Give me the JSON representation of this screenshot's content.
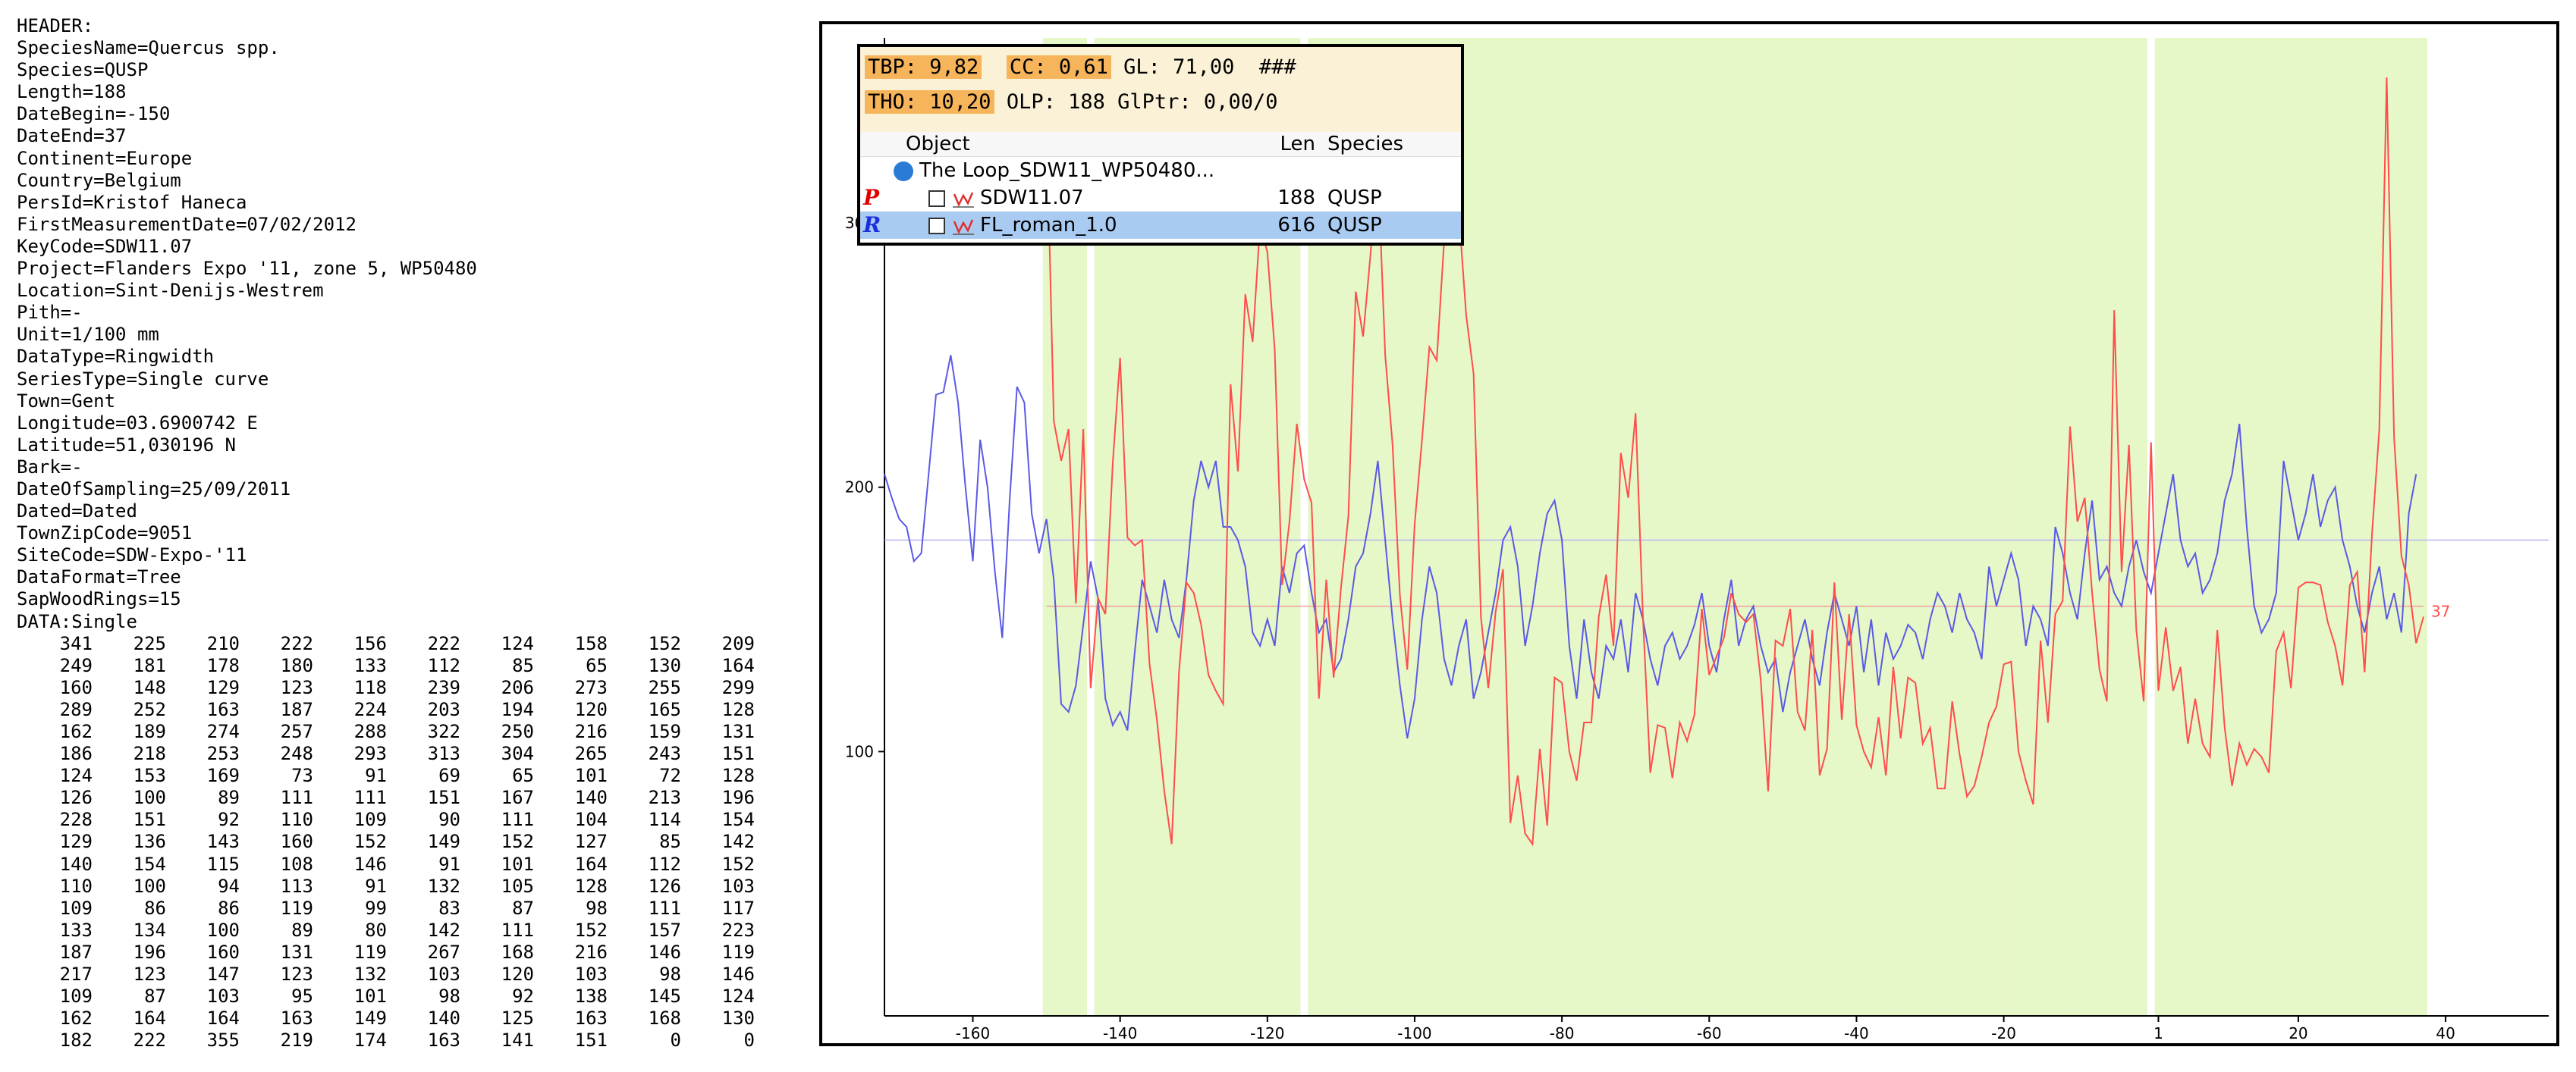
{
  "header_lines": [
    "HEADER:",
    "SpeciesName=Quercus spp.",
    "Species=QUSP",
    "Length=188",
    "DateBegin=-150",
    "DateEnd=37",
    "Continent=Europe",
    "Country=Belgium",
    "PersId=Kristof Haneca",
    "FirstMeasurementDate=07/02/2012",
    "KeyCode=SDW11.07",
    "Project=Flanders Expo '11, zone 5, WP50480",
    "Location=Sint-Denijs-Westrem",
    "Pith=-",
    "Unit=1/100 mm",
    "DataType=Ringwidth",
    "SeriesType=Single curve",
    "Town=Gent",
    "Longitude=03.6900742 E",
    "Latitude=51,030196 N",
    "Bark=-",
    "DateOfSampling=25/09/2011",
    "Dated=Dated",
    "TownZipCode=9051",
    "SiteCode=SDW-Expo-'11",
    "DataFormat=Tree",
    "SapWoodRings=15",
    "DATA:Single"
  ],
  "data_rows": [
    [
      "341",
      "225",
      "210",
      "222",
      "156",
      "222",
      "124",
      "158",
      "152",
      "209"
    ],
    [
      "249",
      "181",
      "178",
      "180",
      "133",
      "112",
      "85",
      "65",
      "130",
      "164"
    ],
    [
      "160",
      "148",
      "129",
      "123",
      "118",
      "239",
      "206",
      "273",
      "255",
      "299"
    ],
    [
      "289",
      "252",
      "163",
      "187",
      "224",
      "203",
      "194",
      "120",
      "165",
      "128"
    ],
    [
      "162",
      "189",
      "274",
      "257",
      "288",
      "322",
      "250",
      "216",
      "159",
      "131"
    ],
    [
      "186",
      "218",
      "253",
      "248",
      "293",
      "313",
      "304",
      "265",
      "243",
      "151"
    ],
    [
      "124",
      "153",
      "169",
      "73",
      "91",
      "69",
      "65",
      "101",
      "72",
      "128"
    ],
    [
      "126",
      "100",
      "89",
      "111",
      "111",
      "151",
      "167",
      "140",
      "213",
      "196"
    ],
    [
      "228",
      "151",
      "92",
      "110",
      "109",
      "90",
      "111",
      "104",
      "114",
      "154"
    ],
    [
      "129",
      "136",
      "143",
      "160",
      "152",
      "149",
      "152",
      "127",
      "85",
      "142"
    ],
    [
      "140",
      "154",
      "115",
      "108",
      "146",
      "91",
      "101",
      "164",
      "112",
      "152"
    ],
    [
      "110",
      "100",
      "94",
      "113",
      "91",
      "132",
      "105",
      "128",
      "126",
      "103"
    ],
    [
      "109",
      "86",
      "86",
      "119",
      "99",
      "83",
      "87",
      "98",
      "111",
      "117"
    ],
    [
      "133",
      "134",
      "100",
      "89",
      "80",
      "142",
      "111",
      "152",
      "157",
      "223"
    ],
    [
      "187",
      "196",
      "160",
      "131",
      "119",
      "267",
      "168",
      "216",
      "146",
      "119"
    ],
    [
      "217",
      "123",
      "147",
      "123",
      "132",
      "103",
      "120",
      "103",
      "98",
      "146"
    ],
    [
      "109",
      "87",
      "103",
      "95",
      "101",
      "98",
      "92",
      "138",
      "145",
      "124"
    ],
    [
      "162",
      "164",
      "164",
      "163",
      "149",
      "140",
      "125",
      "163",
      "168",
      "130"
    ],
    [
      "182",
      "222",
      "355",
      "219",
      "174",
      "163",
      "141",
      "151",
      "0",
      "0"
    ]
  ],
  "info_box": {
    "tbp_label": "TBP: 9,82",
    "cc_label": "CC: 0,61",
    "gl_label": "GL: 71,00",
    "hash": "###",
    "tho_label": "THO: 10,20",
    "olp_label": "OLP: 188",
    "glptr_label": "GlPtr: 0,00/0",
    "columns": {
      "object": "Object",
      "len": "Len",
      "species": "Species"
    },
    "rows": [
      {
        "marker": "",
        "name": "The Loop_SDW11_WP50480...",
        "len": "",
        "species": ""
      },
      {
        "marker": "P",
        "name": "SDW11.07",
        "len": "188",
        "species": "QUSP"
      },
      {
        "marker": "R",
        "name": "FL_roman_1.0",
        "len": "616",
        "species": "QUSP"
      }
    ]
  },
  "colors": {
    "sample_line": "#ff4d4d",
    "reference_line": "#5a5ae6",
    "agreement_band": "#e6f7c8",
    "highlight": "#f6b45b"
  },
  "chart_data": {
    "type": "line",
    "xlim": [
      -172,
      54
    ],
    "ylim": [
      0,
      370
    ],
    "x_ticks": [
      -160,
      -140,
      -120,
      -100,
      -80,
      -60,
      -40,
      -20,
      1,
      20,
      40
    ],
    "y_ticks": [
      100,
      200,
      300
    ],
    "series": [
      {
        "name": "SDW11.07",
        "start": -150,
        "values": [
          341,
          225,
          210,
          222,
          156,
          222,
          124,
          158,
          152,
          209,
          249,
          181,
          178,
          180,
          133,
          112,
          85,
          65,
          130,
          164,
          160,
          148,
          129,
          123,
          118,
          239,
          206,
          273,
          255,
          299,
          289,
          252,
          163,
          187,
          224,
          203,
          194,
          120,
          165,
          128,
          162,
          189,
          274,
          257,
          288,
          322,
          250,
          216,
          159,
          131,
          186,
          218,
          253,
          248,
          293,
          313,
          304,
          265,
          243,
          151,
          124,
          153,
          169,
          73,
          91,
          69,
          65,
          101,
          72,
          128,
          126,
          100,
          89,
          111,
          111,
          151,
          167,
          140,
          213,
          196,
          228,
          151,
          92,
          110,
          109,
          90,
          111,
          104,
          114,
          154,
          129,
          136,
          143,
          160,
          152,
          149,
          152,
          127,
          85,
          142,
          140,
          154,
          115,
          108,
          146,
          91,
          101,
          164,
          112,
          152,
          110,
          100,
          94,
          113,
          91,
          132,
          105,
          128,
          126,
          103,
          109,
          86,
          86,
          119,
          99,
          83,
          87,
          98,
          111,
          117,
          133,
          134,
          100,
          89,
          80,
          142,
          111,
          152,
          157,
          223,
          187,
          196,
          160,
          131,
          119,
          267,
          168,
          216,
          146,
          119,
          217,
          123,
          147,
          123,
          132,
          103,
          120,
          103,
          98,
          146,
          109,
          87,
          103,
          95,
          101,
          98,
          92,
          138,
          145,
          124,
          162,
          164,
          164,
          163,
          149,
          140,
          125,
          163,
          168,
          130,
          182,
          222,
          355,
          219,
          174,
          163,
          141,
          151
        ],
        "start_label": "SDW11.07",
        "end_label": "37",
        "mean": 155
      },
      {
        "name": "FL_roman_1.0",
        "start": -172,
        "values": [
          205,
          196,
          188,
          185,
          172,
          175,
          205,
          235,
          236,
          250,
          232,
          200,
          172,
          218,
          200,
          168,
          143,
          195,
          238,
          232,
          190,
          175,
          188,
          165,
          118,
          115,
          125,
          148,
          172,
          158,
          120,
          110,
          115,
          108,
          138,
          165,
          155,
          145,
          165,
          150,
          143,
          165,
          195,
          210,
          200,
          210,
          185,
          185,
          180,
          170,
          145,
          140,
          150,
          140,
          170,
          160,
          175,
          178,
          160,
          145,
          150,
          130,
          135,
          150,
          170,
          175,
          190,
          210,
          180,
          150,
          125,
          105,
          120,
          150,
          170,
          160,
          135,
          125,
          140,
          150,
          120,
          130,
          145,
          160,
          180,
          185,
          170,
          140,
          155,
          175,
          190,
          195,
          180,
          140,
          120,
          150,
          130,
          120,
          140,
          135,
          150,
          130,
          160,
          150,
          135,
          125,
          140,
          145,
          135,
          140,
          148,
          160,
          140,
          130,
          150,
          165,
          140,
          150,
          155,
          140,
          130,
          135,
          115,
          130,
          140,
          150,
          135,
          125,
          145,
          160,
          150,
          140,
          155,
          130,
          150,
          125,
          145,
          135,
          140,
          148,
          145,
          135,
          150,
          160,
          155,
          145,
          160,
          150,
          145,
          135,
          170,
          155,
          165,
          175,
          165,
          140,
          155,
          150,
          140,
          185,
          175,
          160,
          150,
          175,
          195,
          165,
          170,
          160,
          155,
          170,
          180,
          168,
          160,
          175,
          190,
          205,
          180,
          170,
          175,
          160,
          165,
          175,
          195,
          205,
          224,
          185,
          155,
          145,
          150,
          160,
          210,
          195,
          180,
          190,
          205,
          185,
          195,
          200,
          180,
          170,
          155,
          145,
          160,
          170,
          150,
          160,
          145,
          190,
          205
        ]
      }
    ],
    "agreement_bands": [
      [
        -150,
        -148
      ],
      [
        -147,
        -145
      ],
      [
        -143,
        -142
      ],
      [
        -141,
        -140
      ],
      [
        -139,
        -136
      ],
      [
        -135,
        -131
      ],
      [
        -130,
        -127
      ],
      [
        -126,
        -123
      ],
      [
        -122,
        -121
      ],
      [
        -120,
        -116
      ],
      [
        -114,
        -110
      ],
      [
        -109,
        -108
      ],
      [
        -107,
        -104
      ],
      [
        -103,
        -99
      ],
      [
        -98,
        -96
      ],
      [
        -95,
        -93
      ],
      [
        -92,
        -91
      ],
      [
        -90,
        -88
      ],
      [
        -87,
        -86
      ],
      [
        -85,
        -84
      ],
      [
        -83,
        -82
      ],
      [
        -81,
        -80
      ],
      [
        -79,
        -77
      ],
      [
        -76,
        -74
      ],
      [
        -73,
        -72
      ],
      [
        -71,
        -69
      ],
      [
        -68,
        -67
      ],
      [
        -66,
        -64
      ],
      [
        -63,
        -62
      ],
      [
        -61,
        -60
      ],
      [
        -59,
        -57
      ],
      [
        -56,
        -55
      ],
      [
        -54,
        -53
      ],
      [
        -52,
        -51
      ],
      [
        -50,
        -48
      ],
      [
        -47,
        -46
      ],
      [
        -45,
        -44
      ],
      [
        -43,
        -42
      ],
      [
        -41,
        -39
      ],
      [
        -38,
        -37
      ],
      [
        -36,
        -35
      ],
      [
        -34,
        -32
      ],
      [
        -31,
        -30
      ],
      [
        -29,
        -28
      ],
      [
        -27,
        -25
      ],
      [
        -24,
        -23
      ],
      [
        -22,
        -21
      ],
      [
        -20,
        -19
      ],
      [
        -18,
        -16
      ],
      [
        -15,
        -14
      ],
      [
        -13,
        -12
      ],
      [
        -11,
        -10
      ],
      [
        -9,
        -7
      ],
      [
        -6,
        -5
      ],
      [
        -4,
        -3
      ],
      [
        -2,
        -1
      ],
      [
        1,
        2
      ],
      [
        3,
        4
      ],
      [
        5,
        7
      ],
      [
        8,
        9
      ],
      [
        10,
        11
      ],
      [
        12,
        14
      ],
      [
        15,
        16
      ],
      [
        17,
        19
      ],
      [
        20,
        21
      ],
      [
        22,
        23
      ],
      [
        24,
        26
      ],
      [
        27,
        28
      ],
      [
        29,
        30
      ],
      [
        31,
        32
      ],
      [
        33,
        35
      ],
      [
        36,
        37
      ]
    ]
  }
}
